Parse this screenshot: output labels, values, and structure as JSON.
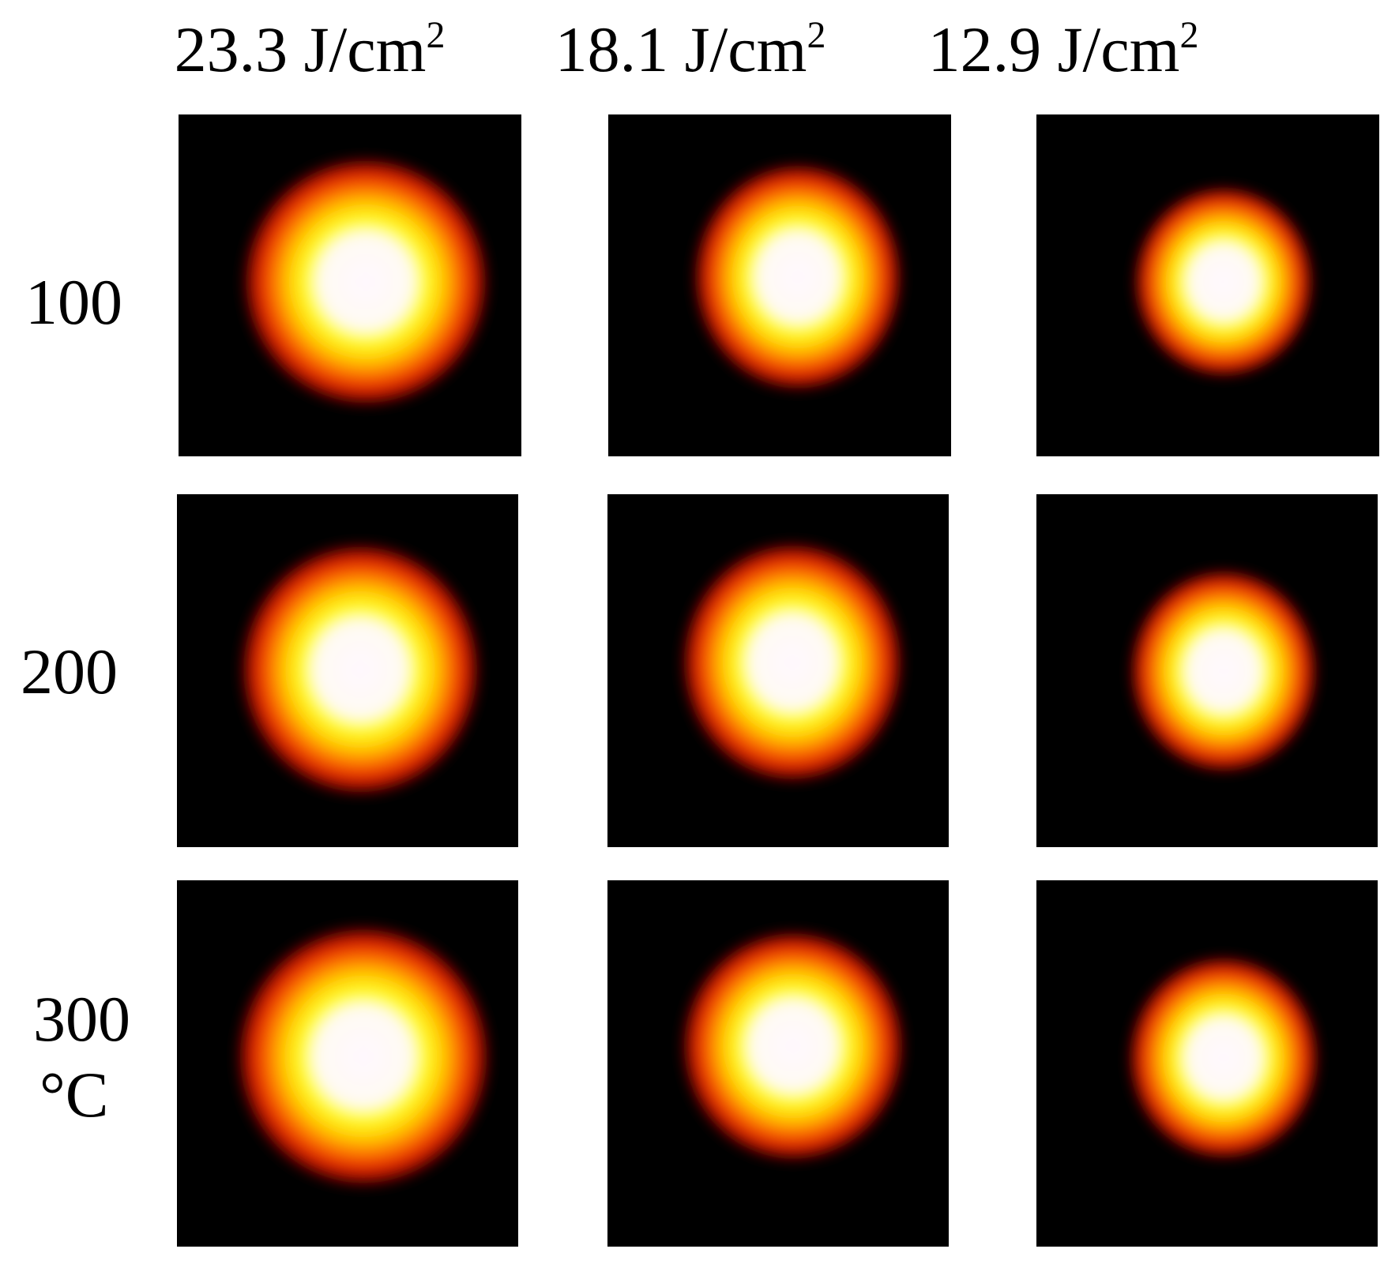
{
  "columns": [
    {
      "value": "23.3",
      "unit": "J/cm",
      "sup": "2"
    },
    {
      "value": "18.1",
      "unit": "J/cm",
      "sup": "2"
    },
    {
      "value": "12.9",
      "unit": "J/cm",
      "sup": "2"
    }
  ],
  "rows": [
    {
      "label": "100"
    },
    {
      "label": "200"
    },
    {
      "label": "300",
      "unit": "°C"
    }
  ],
  "colors": {
    "background": "#000000",
    "outer_glow": "#e02000",
    "mid_glow": "#ff7a00",
    "inner_glow": "#ffff20",
    "core": "#fff8ff"
  }
}
